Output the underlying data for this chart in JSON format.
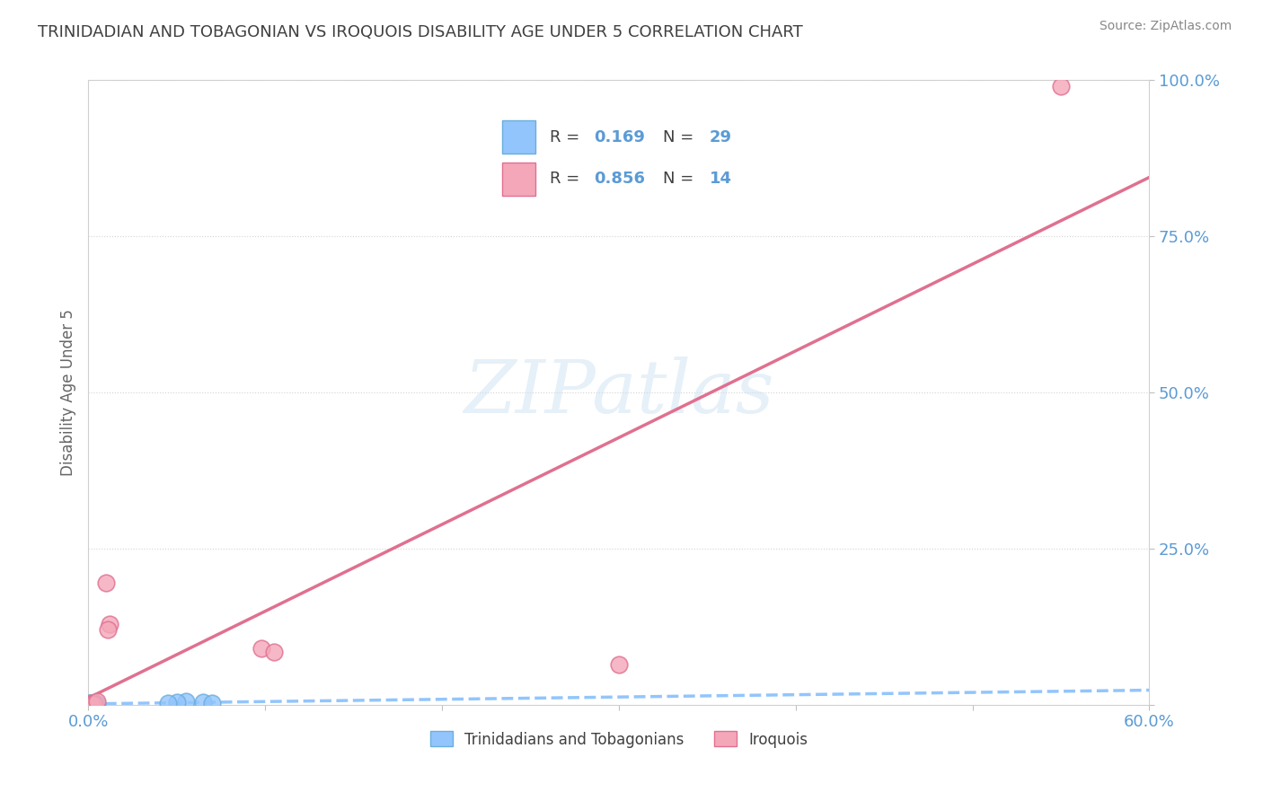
{
  "title": "TRINIDADIAN AND TOBAGONIAN VS IROQUOIS DISABILITY AGE UNDER 5 CORRELATION CHART",
  "source": "Source: ZipAtlas.com",
  "ylabel": "Disability Age Under 5",
  "xlim": [
    0.0,
    0.6
  ],
  "ylim": [
    0.0,
    1.0
  ],
  "blue_r": 0.169,
  "blue_n": 29,
  "pink_r": 0.856,
  "pink_n": 14,
  "blue_color": "#92c5fc",
  "pink_color": "#f4a7b9",
  "blue_edge": "#6aaede",
  "pink_edge": "#e07090",
  "blue_label": "Trinidadians and Tobagonians",
  "pink_label": "Iroquois",
  "blue_points_x": [
    0.001,
    0.002,
    0.003,
    0.001,
    0.002,
    0.004,
    0.003,
    0.002,
    0.001,
    0.003,
    0.002,
    0.001,
    0.004,
    0.003,
    0.002,
    0.001,
    0.005,
    0.003,
    0.002,
    0.001,
    0.003,
    0.002,
    0.004,
    0.001,
    0.055,
    0.065,
    0.07,
    0.05,
    0.045
  ],
  "blue_points_y": [
    0.001,
    0.002,
    0.001,
    0.003,
    0.001,
    0.002,
    0.001,
    0.003,
    0.002,
    0.001,
    0.002,
    0.001,
    0.003,
    0.002,
    0.001,
    0.002,
    0.001,
    0.002,
    0.001,
    0.003,
    0.002,
    0.001,
    0.002,
    0.001,
    0.005,
    0.004,
    0.003,
    0.004,
    0.003
  ],
  "pink_points_x": [
    0.002,
    0.003,
    0.002,
    0.003,
    0.002,
    0.003,
    0.098,
    0.105,
    0.3,
    0.55,
    0.01,
    0.012,
    0.011,
    0.005
  ],
  "pink_points_y": [
    0.002,
    0.001,
    0.003,
    0.002,
    0.001,
    0.002,
    0.09,
    0.085,
    0.065,
    0.99,
    0.195,
    0.13,
    0.12,
    0.005
  ],
  "watermark": "ZIPatlas",
  "title_color": "#404040",
  "axis_color": "#5b9bd5",
  "grid_color": "#d3d3d3",
  "ytick_labels": [
    "",
    "25.0%",
    "50.0%",
    "75.0%",
    "100.0%"
  ],
  "ytick_vals": [
    0.0,
    0.25,
    0.5,
    0.75,
    1.0
  ]
}
